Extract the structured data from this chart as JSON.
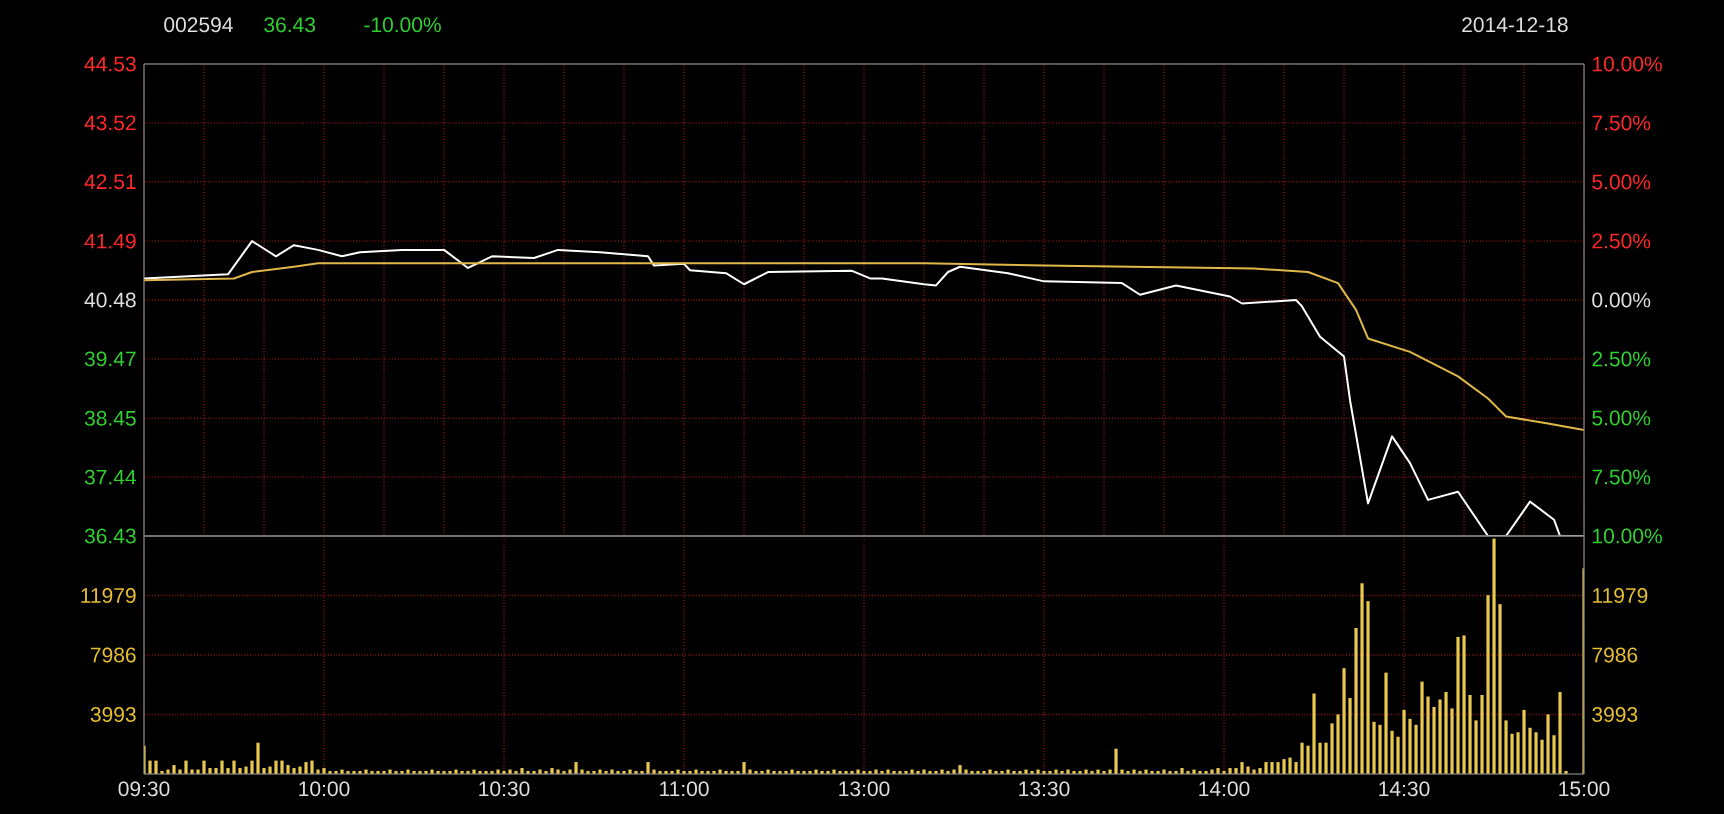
{
  "chart_data": [
    {
      "type": "line",
      "title": "002594",
      "annotations": [
        "36.43",
        "-10.00%",
        "2014-12-18"
      ],
      "categories": [
        null,
        null,
        null,
        null,
        null,
        null,
        null,
        null,
        null,
        null,
        null,
        null,
        null,
        null,
        null,
        null,
        null,
        null,
        null,
        null,
        null,
        null,
        null,
        null,
        null,
        null,
        null,
        null,
        null,
        null,
        null,
        null,
        null,
        null,
        null,
        null,
        null,
        null,
        null,
        null,
        null,
        null,
        null,
        null,
        null,
        null,
        null,
        null,
        null,
        null,
        null,
        null,
        null,
        null,
        null,
        null,
        null,
        null,
        null,
        null,
        null,
        null,
        null,
        null,
        null,
        null,
        null,
        null,
        null,
        null,
        null,
        null,
        null,
        null,
        null,
        null,
        null,
        null,
        null,
        null,
        null,
        null,
        null,
        null,
        null,
        null,
        null,
        null,
        null,
        null,
        null,
        null,
        null,
        null,
        null,
        null,
        null,
        null,
        null,
        null,
        null,
        null,
        null,
        null,
        null,
        null,
        null,
        null,
        null,
        null,
        null,
        null,
        null,
        null,
        null,
        null,
        null,
        null,
        null,
        null,
        null,
        null,
        null,
        null,
        null,
        null,
        null,
        null,
        null,
        null,
        null,
        null,
        null,
        null,
        null,
        null,
        null,
        null,
        null,
        null,
        null,
        null,
        null,
        null,
        null,
        null,
        null,
        null,
        null,
        null,
        null,
        null,
        null,
        null,
        null,
        null,
        null,
        null,
        null,
        null,
        null,
        null,
        null,
        null,
        null,
        null,
        null,
        null,
        null,
        null,
        null,
        null,
        null,
        null,
        null,
        null,
        null,
        null,
        null,
        null,
        null,
        null,
        null,
        null,
        null,
        null,
        null,
        null,
        null,
        null,
        null,
        null,
        null,
        null,
        null,
        null,
        null,
        null,
        null,
        null,
        null,
        null,
        null,
        null,
        null,
        null,
        null,
        null,
        null,
        null,
        null,
        null,
        null,
        null,
        null,
        null,
        null,
        null,
        null,
        null,
        null,
        null,
        null,
        null,
        null,
        null,
        null,
        null,
        null,
        null,
        null,
        null,
        null,
        null,
        null,
        null,
        null,
        null,
        null,
        null,
        null
      ],
      "ylim": [
        36.43,
        44.53
      ],
      "yticks": [
        44.53,
        43.52,
        42.51,
        41.49,
        40.48,
        39.47,
        38.45,
        37.44,
        36.43
      ],
      "y2lim": [
        -10,
        10
      ],
      "y2ticks": [
        {
          "value": 10,
          "label": "10.00%"
        },
        {
          "value": 7.5,
          "label": "7.50%"
        },
        {
          "value": 5,
          "label": "5.00%"
        },
        {
          "value": 2.5,
          "label": "2.50%"
        },
        {
          "value": 0,
          "label": "0.00%"
        },
        {
          "value": -2.5,
          "label": "2.50%"
        },
        {
          "value": -5,
          "label": "5.00%"
        },
        {
          "value": -7.5,
          "label": "7.50%"
        },
        {
          "value": -10,
          "label": "10.00%"
        }
      ],
      "tick_labels": "y",
      "grid": true,
      "marker": "none",
      "series": [
        {
          "color": "#ffffff",
          "values": [
            40.85,
            null,
            null,
            null,
            null,
            null,
            null,
            null,
            null,
            null,
            null,
            null,
            null,
            null,
            40.92,
            null,
            null,
            null,
            41.49,
            null,
            null,
            null,
            41.23,
            null,
            null,
            41.42,
            null,
            null,
            null,
            41.34,
            null,
            null,
            null,
            41.23,
            null,
            null,
            41.3,
            null,
            null,
            null,
            null,
            null,
            null,
            41.34,
            null,
            null,
            null,
            null,
            null,
            null,
            41.34,
            null,
            null,
            null,
            41.03,
            null,
            null,
            null,
            41.23,
            null,
            null,
            null,
            null,
            null,
            null,
            41.2,
            null,
            null,
            null,
            41.34,
            null,
            null,
            null,
            null,
            null,
            null,
            41.3,
            null,
            null,
            null,
            null,
            null,
            null,
            null,
            41.23,
            41.07,
            null,
            null,
            null,
            null,
            41.1,
            40.99,
            null,
            null,
            null,
            null,
            null,
            40.94,
            null,
            null,
            40.75,
            null,
            null,
            null,
            40.96,
            null,
            null,
            null,
            null,
            null,
            null,
            null,
            null,
            null,
            null,
            null,
            null,
            null,
            40.98,
            null,
            null,
            40.85,
            null,
            40.85,
            null,
            null,
            null,
            null,
            null,
            null,
            40.75,
            null,
            40.73,
            null,
            40.96,
            null,
            41.05,
            null,
            null,
            null,
            null,
            null,
            null,
            null,
            40.94,
            null,
            null,
            null,
            null,
            null,
            40.8,
            null,
            null,
            null,
            null,
            null,
            null,
            null,
            null,
            null,
            null,
            null,
            null,
            40.77,
            null,
            null,
            40.57,
            null,
            null,
            null,
            null,
            null,
            40.73,
            null,
            null,
            null,
            null,
            null,
            null,
            null,
            null,
            40.54,
            null,
            40.42,
            null,
            null,
            null,
            null,
            null,
            null,
            null,
            null,
            40.48,
            40.37,
            null,
            null,
            39.85,
            null,
            null,
            null,
            39.51,
            38.76,
            null,
            null,
            36.99,
            null,
            null,
            null,
            38.14,
            null,
            null,
            37.68,
            null,
            null,
            37.05,
            null,
            null,
            null,
            null,
            37.19,
            null,
            null,
            null,
            null,
            36.43,
            null,
            null,
            36.43,
            null,
            null,
            null,
            37.02,
            null,
            null,
            null,
            36.71,
            36.43,
            null,
            null,
            null,
            36.43
          ]
        },
        {
          "color": "#e0b848",
          "values": [
            40.82,
            null,
            null,
            null,
            null,
            null,
            null,
            null,
            null,
            null,
            null,
            null,
            null,
            null,
            null,
            40.85,
            null,
            null,
            40.96,
            null,
            null,
            null,
            null,
            null,
            null,
            41.05,
            null,
            null,
            null,
            41.11,
            null,
            null,
            null,
            null,
            null,
            null,
            null,
            null,
            null,
            null,
            null,
            null,
            null,
            null,
            null,
            null,
            null,
            null,
            null,
            null,
            null,
            null,
            null,
            null,
            null,
            null,
            null,
            null,
            null,
            null,
            null,
            null,
            null,
            null,
            null,
            null,
            null,
            null,
            null,
            null,
            null,
            null,
            null,
            null,
            null,
            null,
            null,
            null,
            null,
            null,
            null,
            null,
            null,
            null,
            null,
            null,
            null,
            null,
            null,
            null,
            null,
            null,
            null,
            null,
            null,
            null,
            null,
            null,
            null,
            null,
            null,
            null,
            null,
            null,
            null,
            null,
            null,
            null,
            null,
            null,
            null,
            null,
            null,
            null,
            null,
            null,
            null,
            null,
            null,
            null,
            null,
            null,
            null,
            null,
            null,
            null,
            null,
            null,
            null,
            null,
            41.11,
            null,
            null,
            null,
            null,
            null,
            null,
            null,
            null,
            null,
            null,
            null,
            null,
            null,
            null,
            null,
            null,
            null,
            null,
            null,
            41.07,
            null,
            null,
            null,
            null,
            null,
            null,
            null,
            null,
            null,
            null,
            null,
            null,
            null,
            null,
            null,
            null,
            null,
            null,
            null,
            null,
            null,
            null,
            null,
            null,
            null,
            null,
            null,
            null,
            null,
            null,
            null,
            null,
            null,
            null,
            41.02,
            null,
            null,
            null,
            null,
            null,
            null,
            null,
            null,
            40.96,
            null,
            null,
            null,
            null,
            40.77,
            null,
            null,
            40.31,
            null,
            39.82,
            null,
            null,
            null,
            null,
            null,
            null,
            39.59,
            null,
            null,
            null,
            null,
            null,
            null,
            null,
            39.17,
            null,
            null,
            null,
            null,
            38.79,
            null,
            null,
            38.48,
            null,
            null,
            null,
            null,
            null,
            null,
            38.36,
            null,
            null,
            null,
            null,
            null,
            38.25
          ]
        }
      ]
    },
    {
      "type": "bar",
      "categories": [
        "09:30",
        null,
        null,
        null,
        null,
        null,
        null,
        null,
        null,
        null,
        null,
        null,
        null,
        null,
        null,
        null,
        null,
        null,
        null,
        null,
        null,
        null,
        null,
        null,
        null,
        null,
        null,
        null,
        null,
        null,
        "10:00",
        null,
        null,
        null,
        null,
        null,
        null,
        null,
        null,
        null,
        null,
        null,
        null,
        null,
        null,
        null,
        null,
        null,
        null,
        null,
        null,
        null,
        null,
        null,
        null,
        null,
        null,
        null,
        null,
        null,
        "10:30",
        null,
        null,
        null,
        null,
        null,
        null,
        null,
        null,
        null,
        null,
        null,
        null,
        null,
        null,
        null,
        null,
        null,
        null,
        null,
        null,
        null,
        null,
        null,
        null,
        null,
        null,
        null,
        null,
        null,
        "11:00",
        null,
        null,
        null,
        null,
        null,
        null,
        null,
        null,
        null,
        null,
        null,
        null,
        null,
        null,
        null,
        null,
        null,
        null,
        null,
        null,
        null,
        null,
        null,
        null,
        null,
        null,
        null,
        null,
        null,
        "13:00",
        null,
        null,
        null,
        null,
        null,
        null,
        null,
        null,
        null,
        null,
        null,
        null,
        null,
        null,
        null,
        null,
        null,
        null,
        null,
        null,
        null,
        null,
        null,
        null,
        null,
        null,
        null,
        null,
        null,
        "13:30",
        null,
        null,
        null,
        null,
        null,
        null,
        null,
        null,
        null,
        null,
        null,
        null,
        null,
        null,
        null,
        null,
        null,
        null,
        null,
        null,
        null,
        null,
        null,
        null,
        null,
        null,
        null,
        null,
        null,
        "14:00",
        null,
        null,
        null,
        null,
        null,
        null,
        null,
        null,
        null,
        null,
        null,
        null,
        null,
        null,
        null,
        null,
        null,
        null,
        null,
        null,
        null,
        null,
        null,
        null,
        null,
        null,
        null,
        null,
        null,
        "14:30",
        null,
        null,
        null,
        null,
        null,
        null,
        null,
        null,
        null,
        null,
        null,
        null,
        null,
        null,
        null,
        null,
        null,
        null,
        null,
        null,
        null,
        null,
        null,
        null,
        null,
        null,
        null,
        null,
        null,
        "15:00"
      ],
      "ylim": [
        0,
        15972
      ],
      "yticks": [
        3993,
        7986,
        11979
      ],
      "y2lim": [
        0,
        15972
      ],
      "y2ticks": [
        3993,
        7986,
        11979
      ],
      "grid": true,
      "series": [
        {
          "color": "#e8c850",
          "values": [
            1900,
            900,
            900,
            200,
            300,
            600,
            300,
            900,
            300,
            300,
            900,
            400,
            400,
            900,
            400,
            900,
            400,
            500,
            900,
            2100,
            400,
            500,
            900,
            900,
            600,
            400,
            500,
            800,
            900,
            300,
            400,
            200,
            200,
            300,
            200,
            200,
            200,
            300,
            200,
            200,
            200,
            300,
            200,
            200,
            300,
            200,
            200,
            200,
            300,
            200,
            200,
            200,
            300,
            200,
            200,
            300,
            200,
            200,
            200,
            300,
            200,
            300,
            200,
            400,
            200,
            200,
            300,
            200,
            400,
            300,
            200,
            300,
            800,
            300,
            200,
            200,
            300,
            200,
            300,
            200,
            200,
            300,
            200,
            200,
            800,
            300,
            200,
            200,
            200,
            300,
            200,
            200,
            300,
            200,
            200,
            200,
            300,
            200,
            200,
            200,
            800,
            300,
            200,
            200,
            300,
            200,
            200,
            200,
            300,
            200,
            200,
            200,
            300,
            200,
            200,
            300,
            200,
            200,
            200,
            300,
            200,
            200,
            300,
            200,
            300,
            200,
            200,
            200,
            300,
            200,
            300,
            200,
            200,
            300,
            200,
            300,
            600,
            300,
            200,
            200,
            200,
            300,
            200,
            200,
            300,
            200,
            200,
            300,
            200,
            300,
            200,
            200,
            300,
            200,
            300,
            200,
            200,
            300,
            200,
            300,
            200,
            300,
            1700,
            300,
            200,
            300,
            200,
            300,
            200,
            200,
            300,
            200,
            200,
            400,
            200,
            300,
            200,
            200,
            300,
            400,
            200,
            400,
            400,
            800,
            500,
            300,
            400,
            800,
            800,
            800,
            1000,
            1100,
            800,
            2100,
            1900,
            5400,
            2100,
            2100,
            3400,
            4000,
            7100,
            5100,
            9800,
            12800,
            11600,
            3500,
            3300,
            6800,
            2900,
            2500,
            4300,
            3700,
            3300,
            6200,
            5200,
            4500,
            5000,
            5500,
            4400,
            9200,
            9300,
            5300,
            3600,
            5300,
            12000,
            15800,
            11400,
            3600,
            2700,
            2800,
            4300,
            3100,
            2800,
            2300,
            4000,
            2600,
            5500,
            200,
            null,
            null,
            13800
          ]
        }
      ]
    }
  ]
}
